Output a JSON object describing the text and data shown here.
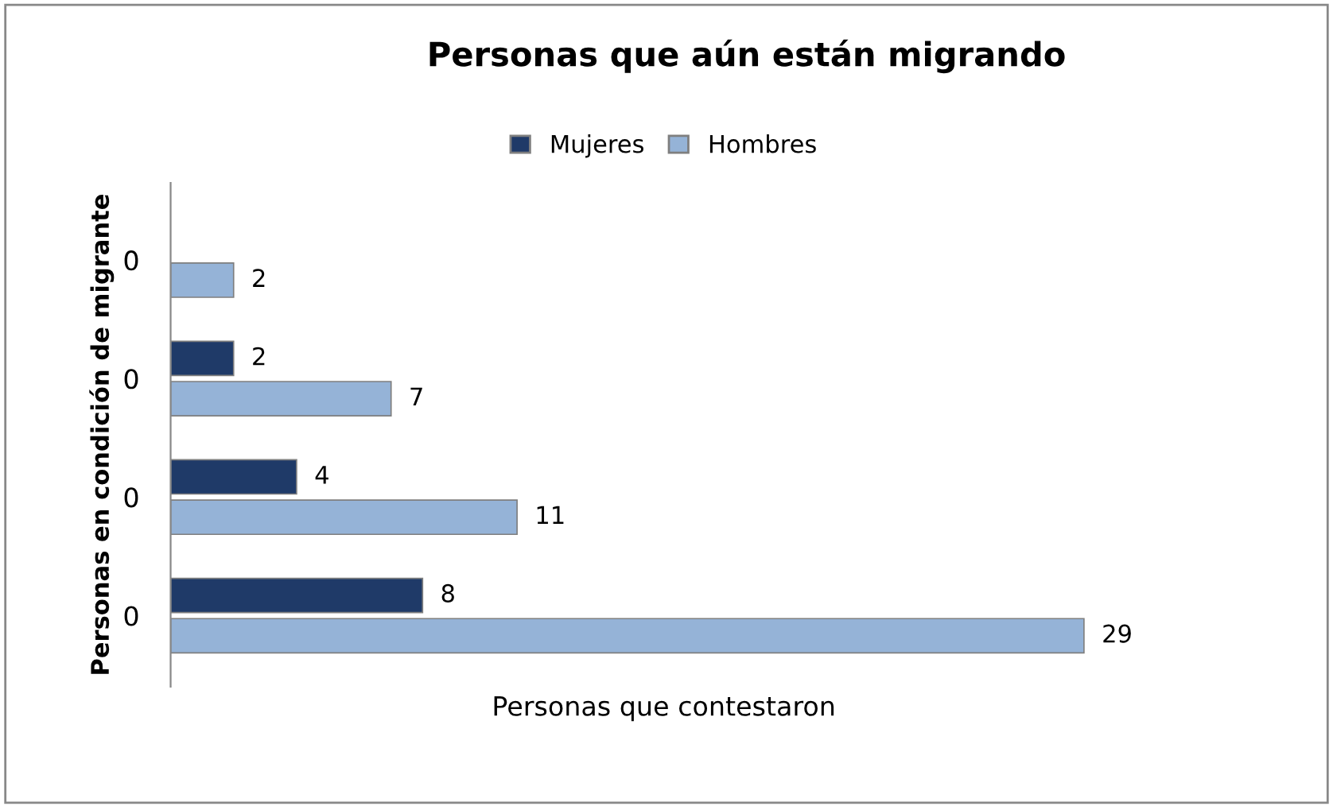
{
  "chart_data": {
    "type": "bar",
    "orientation": "horizontal",
    "title": "Personas que aún están migrando",
    "xlabel": "Personas que contestaron",
    "ylabel": "Personas en condición de migrante",
    "categories": [
      "0",
      "0",
      "0",
      "0"
    ],
    "series": [
      {
        "name": "Mujeres",
        "color": "#1f3a68",
        "values": [
          null,
          2,
          4,
          8
        ]
      },
      {
        "name": "Hombres",
        "color": "#95b3d7",
        "values": [
          2,
          7,
          11,
          29
        ]
      }
    ],
    "data_labels": true,
    "legend": "top",
    "grid": false,
    "tick_labels": "y"
  }
}
